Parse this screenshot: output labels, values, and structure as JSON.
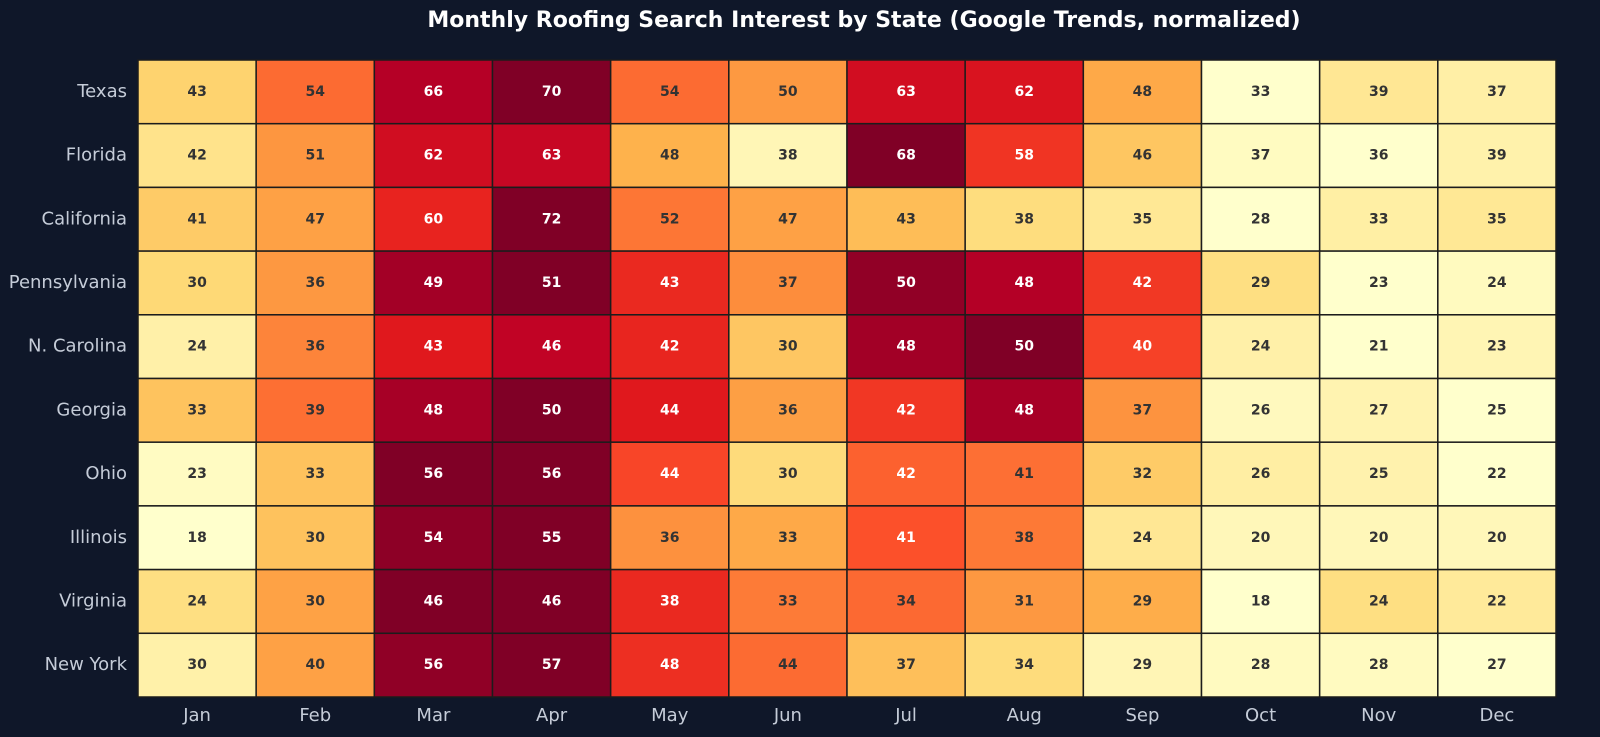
{
  "chart_data": {
    "type": "heatmap",
    "title": "Monthly Roofing Search Interest by State (Google Trends, normalized)",
    "categories": [
      "Jan",
      "Feb",
      "Mar",
      "Apr",
      "May",
      "Jun",
      "Jul",
      "Aug",
      "Sep",
      "Oct",
      "Nov",
      "Dec"
    ],
    "rows": [
      "Texas",
      "Florida",
      "California",
      "Pennsylvania",
      "N. Carolina",
      "Georgia",
      "Ohio",
      "Illinois",
      "Virginia",
      "New York"
    ],
    "values": [
      [
        43,
        54,
        66,
        70,
        54,
        50,
        63,
        62,
        48,
        33,
        39,
        37
      ],
      [
        42,
        51,
        62,
        63,
        48,
        38,
        68,
        58,
        46,
        37,
        36,
        39
      ],
      [
        41,
        47,
        60,
        72,
        52,
        47,
        43,
        38,
        35,
        28,
        33,
        35
      ],
      [
        30,
        36,
        49,
        51,
        43,
        37,
        50,
        48,
        42,
        29,
        23,
        24
      ],
      [
        24,
        36,
        43,
        46,
        42,
        30,
        48,
        50,
        40,
        24,
        21,
        23
      ],
      [
        33,
        39,
        48,
        50,
        44,
        36,
        42,
        48,
        37,
        26,
        27,
        25
      ],
      [
        23,
        33,
        56,
        56,
        44,
        30,
        42,
        41,
        32,
        26,
        25,
        22
      ],
      [
        18,
        30,
        54,
        55,
        36,
        33,
        41,
        38,
        24,
        20,
        20,
        20
      ],
      [
        24,
        30,
        46,
        46,
        38,
        33,
        34,
        31,
        29,
        18,
        24,
        22
      ],
      [
        30,
        40,
        56,
        57,
        48,
        44,
        37,
        34,
        29,
        28,
        28,
        27
      ]
    ],
    "colorscale": [
      "#ffffcc",
      "#ffeda0",
      "#fed976",
      "#feb24c",
      "#fd8d3c",
      "#fc4e2a",
      "#e31a1c",
      "#bd0026",
      "#800026"
    ]
  }
}
